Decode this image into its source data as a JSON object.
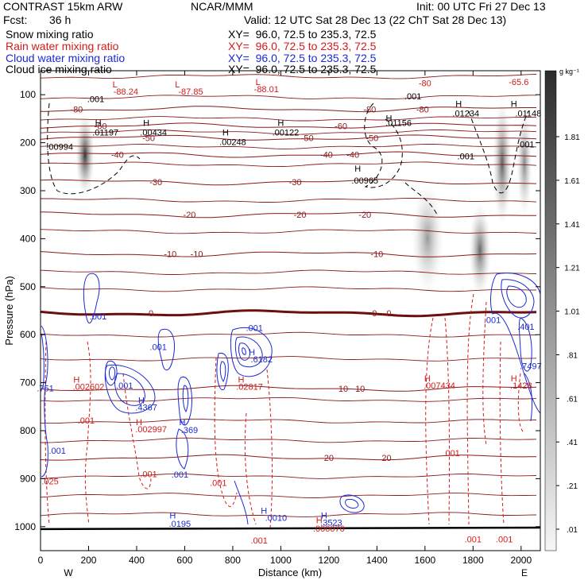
{
  "header": {
    "model": "CONTRAST 15km ARW",
    "org": "NCAR/MMM",
    "init": "Init: 00 UTC Fri 27 Dec 13",
    "fcst_label": "Fcst:",
    "fcst_value": "36 h",
    "valid": "Valid: 12 UTC Sat 28 Dec 13 (22 ChT Sat 28 Dec 13)"
  },
  "legend": [
    {
      "field": "Snow mixing ratio",
      "xy": "XY=  96.0, 72.5 to 235.3, 72.5",
      "color": "#000000"
    },
    {
      "field": "Rain water mixing ratio",
      "xy": "XY=  96.0, 72.5 to 235.3, 72.5",
      "color": "#d41a1a"
    },
    {
      "field": "Cloud water mixing ratio",
      "xy": "XY=  96.0, 72.5 to 235.3, 72.5",
      "color": "#1a2ad4"
    },
    {
      "field": "Cloud ice mixing ratio",
      "xy": "XY=  96.0, 72.5 to 235.3, 72.5",
      "color": "#000000"
    }
  ],
  "chart_data": {
    "type": "cross-section contour",
    "xlabel": "Distance (km)",
    "ylabel": "Pressure (hPa)",
    "xlim": [
      0,
      2080
    ],
    "ylim": [
      1050,
      50
    ],
    "x_ticks": [
      0,
      200,
      400,
      600,
      800,
      1000,
      1200,
      1400,
      1600,
      1800,
      2000
    ],
    "y_ticks": [
      100,
      200,
      300,
      400,
      500,
      600,
      700,
      800,
      900,
      1000
    ],
    "x_end_labels": {
      "left": "W",
      "right": "E"
    },
    "colorbar": {
      "unit": "g kg⁻¹",
      "labels": [
        "1.81",
        "1.61",
        "1.41",
        "1.21",
        "1.01",
        ".81",
        ".61",
        ".41",
        ".21",
        ".01"
      ]
    },
    "isotherms": [
      {
        "label": "-80",
        "p": 130,
        "label_x": [
          150,
          1370,
          1590
        ]
      },
      {
        "label": "-60",
        "p": 165,
        "label_x": [
          250,
          1250
        ]
      },
      {
        "label": "-50",
        "p": 190,
        "label_x": [
          450,
          1110,
          1380
        ]
      },
      {
        "label": "-40",
        "p": 225,
        "label_x": [
          320,
          1190,
          1300
        ]
      },
      {
        "label": "-30",
        "p": 282,
        "label_x": [
          480,
          1060
        ]
      },
      {
        "label": "-20",
        "p": 350,
        "label_x": [
          620,
          1080,
          1350
        ]
      },
      {
        "label": "-10",
        "p": 432,
        "label_x": [
          540,
          650,
          1400
        ]
      },
      {
        "label": "0",
        "p": 555,
        "label_x": [
          460,
          1390,
          1450
        ]
      },
      {
        "label": "10",
        "p": 712,
        "label_x": [
          1260,
          1330
        ]
      },
      {
        "label": "20",
        "p": 856,
        "label_x": [
          1200,
          1440
        ]
      }
    ],
    "annotations": [
      {
        "text": "L",
        "x": 310,
        "p": 85,
        "color": "#d41a1a"
      },
      {
        "text": "-88.24",
        "x": 355,
        "p": 100,
        "color": "#d41a1a"
      },
      {
        "text": "L",
        "x": 570,
        "p": 85,
        "color": "#d41a1a"
      },
      {
        "text": "-87.85",
        "x": 625,
        "p": 100,
        "color": "#d41a1a"
      },
      {
        "text": "L",
        "x": 905,
        "p": 80,
        "color": "#d41a1a"
      },
      {
        "text": "-88.01",
        "x": 940,
        "p": 95,
        "color": "#d41a1a"
      },
      {
        "text": "-65.6",
        "x": 1990,
        "p": 80,
        "color": "#d41a1a"
      },
      {
        "text": "-80",
        "x": 1600,
        "p": 82,
        "color": "#d41a1a"
      },
      {
        "text": ".001",
        "x": 230,
        "p": 115,
        "color": "#000000"
      },
      {
        "text": ".001",
        "x": 1550,
        "p": 110,
        "color": "#000000"
      },
      {
        "text": "H",
        "x": 240,
        "p": 165,
        "color": "#000000"
      },
      {
        "text": ".01197",
        "x": 270,
        "p": 185,
        "color": "#000000"
      },
      {
        "text": "H",
        "x": 440,
        "p": 165,
        "color": "#000000"
      },
      {
        "text": ".00434",
        "x": 470,
        "p": 185,
        "color": "#000000"
      },
      {
        "text": "H",
        "x": 770,
        "p": 185,
        "color": "#000000"
      },
      {
        "text": ".00248",
        "x": 800,
        "p": 205,
        "color": "#000000"
      },
      {
        "text": "H",
        "x": 1000,
        "p": 165,
        "color": "#000000"
      },
      {
        "text": ".00122",
        "x": 1020,
        "p": 185,
        "color": "#000000"
      },
      {
        "text": ".00994",
        "x": 80,
        "p": 215,
        "color": "#000000"
      },
      {
        "text": "H",
        "x": 1450,
        "p": 155,
        "color": "#000000"
      },
      {
        "text": ".01156",
        "x": 1490,
        "p": 165,
        "color": "#000000"
      },
      {
        "text": "H",
        "x": 1740,
        "p": 125,
        "color": "#000000"
      },
      {
        "text": ".01234",
        "x": 1770,
        "p": 145,
        "color": "#000000"
      },
      {
        "text": "H",
        "x": 1970,
        "p": 125,
        "color": "#000000"
      },
      {
        "text": ".01148",
        "x": 2030,
        "p": 145,
        "color": "#000000"
      },
      {
        "text": ".001",
        "x": 1770,
        "p": 235,
        "color": "#000000"
      },
      {
        "text": ".001",
        "x": 2020,
        "p": 210,
        "color": "#000000"
      },
      {
        "text": "H",
        "x": 1320,
        "p": 260,
        "color": "#000000"
      },
      {
        "text": ".00965",
        "x": 1350,
        "p": 285,
        "color": "#000000"
      },
      {
        "text": ".001",
        "x": 240,
        "p": 568,
        "color": "#1a2ad4"
      },
      {
        "text": ".001",
        "x": 490,
        "p": 632,
        "color": "#1a2ad4"
      },
      {
        "text": ".001",
        "x": 890,
        "p": 592,
        "color": "#1a2ad4"
      },
      {
        "text": "H",
        "x": 880,
        "p": 643,
        "color": "#1a2ad4"
      },
      {
        "text": ".6182",
        "x": 920,
        "p": 658,
        "color": "#1a2ad4"
      },
      {
        "text": ".751",
        "x": 20,
        "p": 718,
        "color": "#1a2ad4"
      },
      {
        "text": ".001",
        "x": 350,
        "p": 712,
        "color": "#1a2ad4"
      },
      {
        "text": "H",
        "x": 420,
        "p": 743,
        "color": "#1a2ad4"
      },
      {
        "text": ".4367",
        "x": 440,
        "p": 758,
        "color": "#1a2ad4"
      },
      {
        "text": "H",
        "x": 590,
        "p": 788,
        "color": "#1a2ad4"
      },
      {
        "text": ".369",
        "x": 620,
        "p": 805,
        "color": "#1a2ad4"
      },
      {
        "text": ".001",
        "x": 70,
        "p": 848,
        "color": "#1a2ad4"
      },
      {
        "text": ".001",
        "x": 580,
        "p": 898,
        "color": "#1a2ad4"
      },
      {
        "text": "H",
        "x": 550,
        "p": 983,
        "color": "#1a2ad4"
      },
      {
        "text": ".0195",
        "x": 580,
        "p": 1000,
        "color": "#1a2ad4"
      },
      {
        "text": "H",
        "x": 930,
        "p": 973,
        "color": "#1a2ad4"
      },
      {
        "text": ".0010",
        "x": 980,
        "p": 988,
        "color": "#1a2ad4"
      },
      {
        "text": "H",
        "x": 1180,
        "p": 983,
        "color": "#1a2ad4"
      },
      {
        "text": ".3523",
        "x": 1210,
        "p": 998,
        "color": "#1a2ad4"
      },
      {
        "text": ".001",
        "x": 1880,
        "p": 576,
        "color": "#1a2ad4"
      },
      {
        "text": ".401",
        "x": 2020,
        "p": 590,
        "color": "#1a2ad4"
      },
      {
        "text": ".7497",
        "x": 2040,
        "p": 672,
        "color": "#1a2ad4"
      },
      {
        "text": "H",
        "x": 150,
        "p": 700,
        "color": "#d41a1a"
      },
      {
        "text": ".002602",
        "x": 200,
        "p": 715,
        "color": "#d41a1a"
      },
      {
        "text": "H",
        "x": 835,
        "p": 700,
        "color": "#d41a1a"
      },
      {
        "text": ".02817",
        "x": 870,
        "p": 715,
        "color": "#d41a1a"
      },
      {
        "text": "H",
        "x": 1610,
        "p": 697,
        "color": "#d41a1a"
      },
      {
        "text": ".007434",
        "x": 1660,
        "p": 712,
        "color": "#d41a1a"
      },
      {
        "text": "H",
        "x": 1970,
        "p": 697,
        "color": "#d41a1a"
      },
      {
        "text": ".1428",
        "x": 2000,
        "p": 712,
        "color": "#d41a1a"
      },
      {
        "text": "H",
        "x": 410,
        "p": 788,
        "color": "#d41a1a"
      },
      {
        "text": ".002997",
        "x": 460,
        "p": 803,
        "color": "#d41a1a"
      },
      {
        "text": ".001",
        "x": 190,
        "p": 785,
        "color": "#d41a1a"
      },
      {
        "text": ".001",
        "x": 450,
        "p": 897,
        "color": "#d41a1a"
      },
      {
        "text": ".001",
        "x": 740,
        "p": 915,
        "color": "#d41a1a"
      },
      {
        "text": ".001",
        "x": 1710,
        "p": 853,
        "color": "#d41a1a"
      },
      {
        "text": ".025",
        "x": 40,
        "p": 912,
        "color": "#d41a1a"
      },
      {
        "text": "H",
        "x": 1160,
        "p": 993,
        "color": "#d41a1a"
      },
      {
        "text": ".000070",
        "x": 1200,
        "p": 1010,
        "color": "#d41a1a"
      },
      {
        "text": ".001",
        "x": 910,
        "p": 1035,
        "color": "#d41a1a"
      },
      {
        "text": ".001",
        "x": 1800,
        "p": 1033,
        "color": "#d41a1a"
      },
      {
        "text": ".001",
        "x": 1930,
        "p": 1033,
        "color": "#d41a1a"
      }
    ]
  }
}
